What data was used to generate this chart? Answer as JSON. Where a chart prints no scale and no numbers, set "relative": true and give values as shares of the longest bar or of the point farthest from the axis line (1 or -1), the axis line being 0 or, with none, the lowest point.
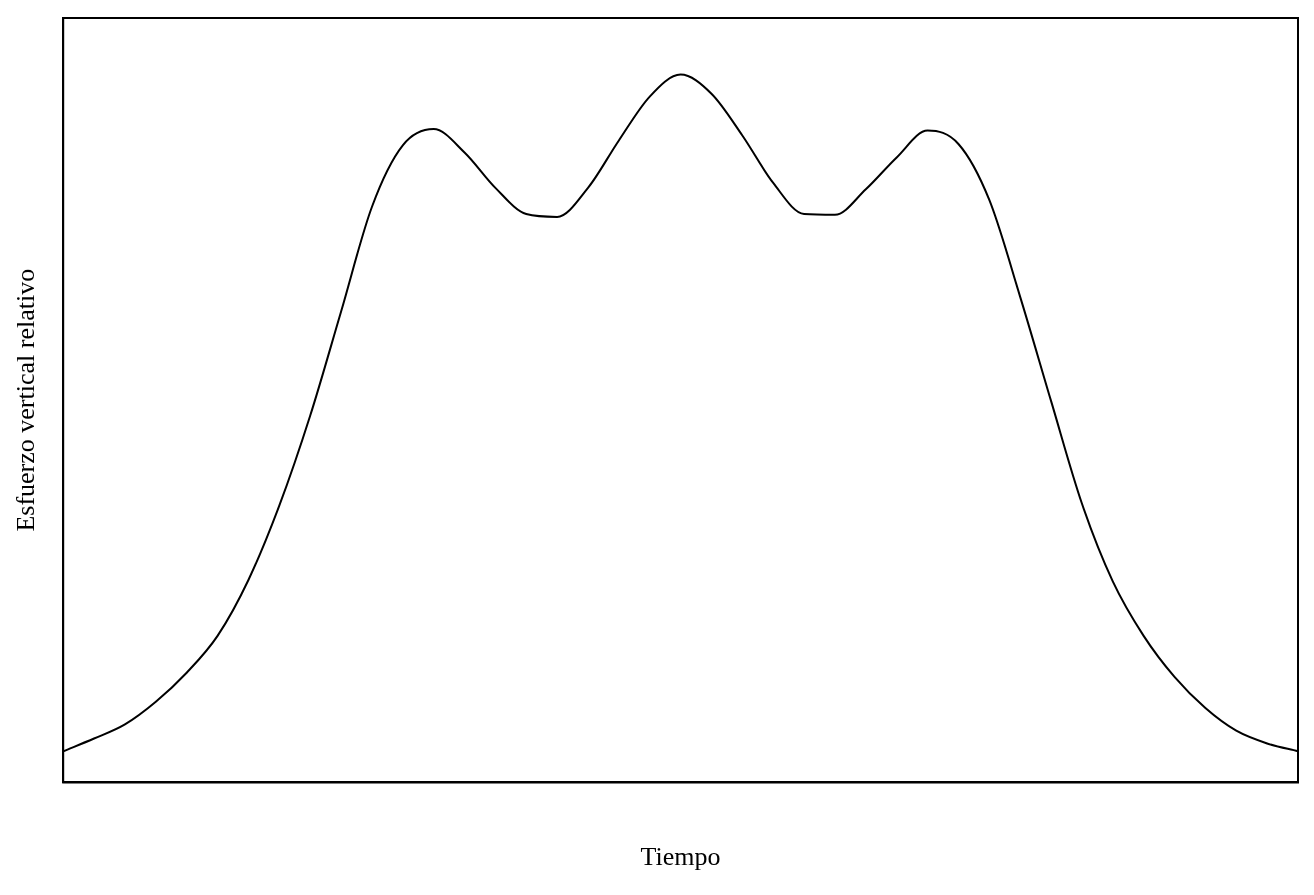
{
  "chart_data": {
    "type": "line",
    "xlabel": "Tiempo",
    "ylabel": "Esfuerzo vertical relativo",
    "relative": true,
    "grid": false,
    "legend": false,
    "marker": "none",
    "line_style": "solid",
    "categories": [
      null,
      null,
      null,
      null,
      null,
      null,
      null,
      null,
      null,
      null,
      null,
      null,
      null,
      null,
      null,
      null,
      null,
      null,
      null,
      null,
      null,
      null,
      null,
      null,
      null,
      null,
      null,
      null,
      null,
      null,
      null,
      null,
      null,
      null,
      null,
      null,
      null,
      null,
      null,
      null,
      null
    ],
    "series": [
      {
        "color": "#000000",
        "values": [
          0.044,
          0.062,
          0.082,
          0.114,
          0.155,
          0.207,
          0.286,
          0.391,
          0.518,
          0.665,
          0.813,
          0.9,
          0.923,
          0.89,
          0.84,
          0.803,
          0.799,
          0.84,
          0.907,
          0.969,
          1,
          0.973,
          0.914,
          0.847,
          0.803,
          0.802,
          0.838,
          0.883,
          0.921,
          0.902,
          0.823,
          0.686,
          0.539,
          0.394,
          0.284,
          0.207,
          0.149,
          0.105,
          0.073,
          0.055,
          0.044
        ]
      }
    ]
  }
}
